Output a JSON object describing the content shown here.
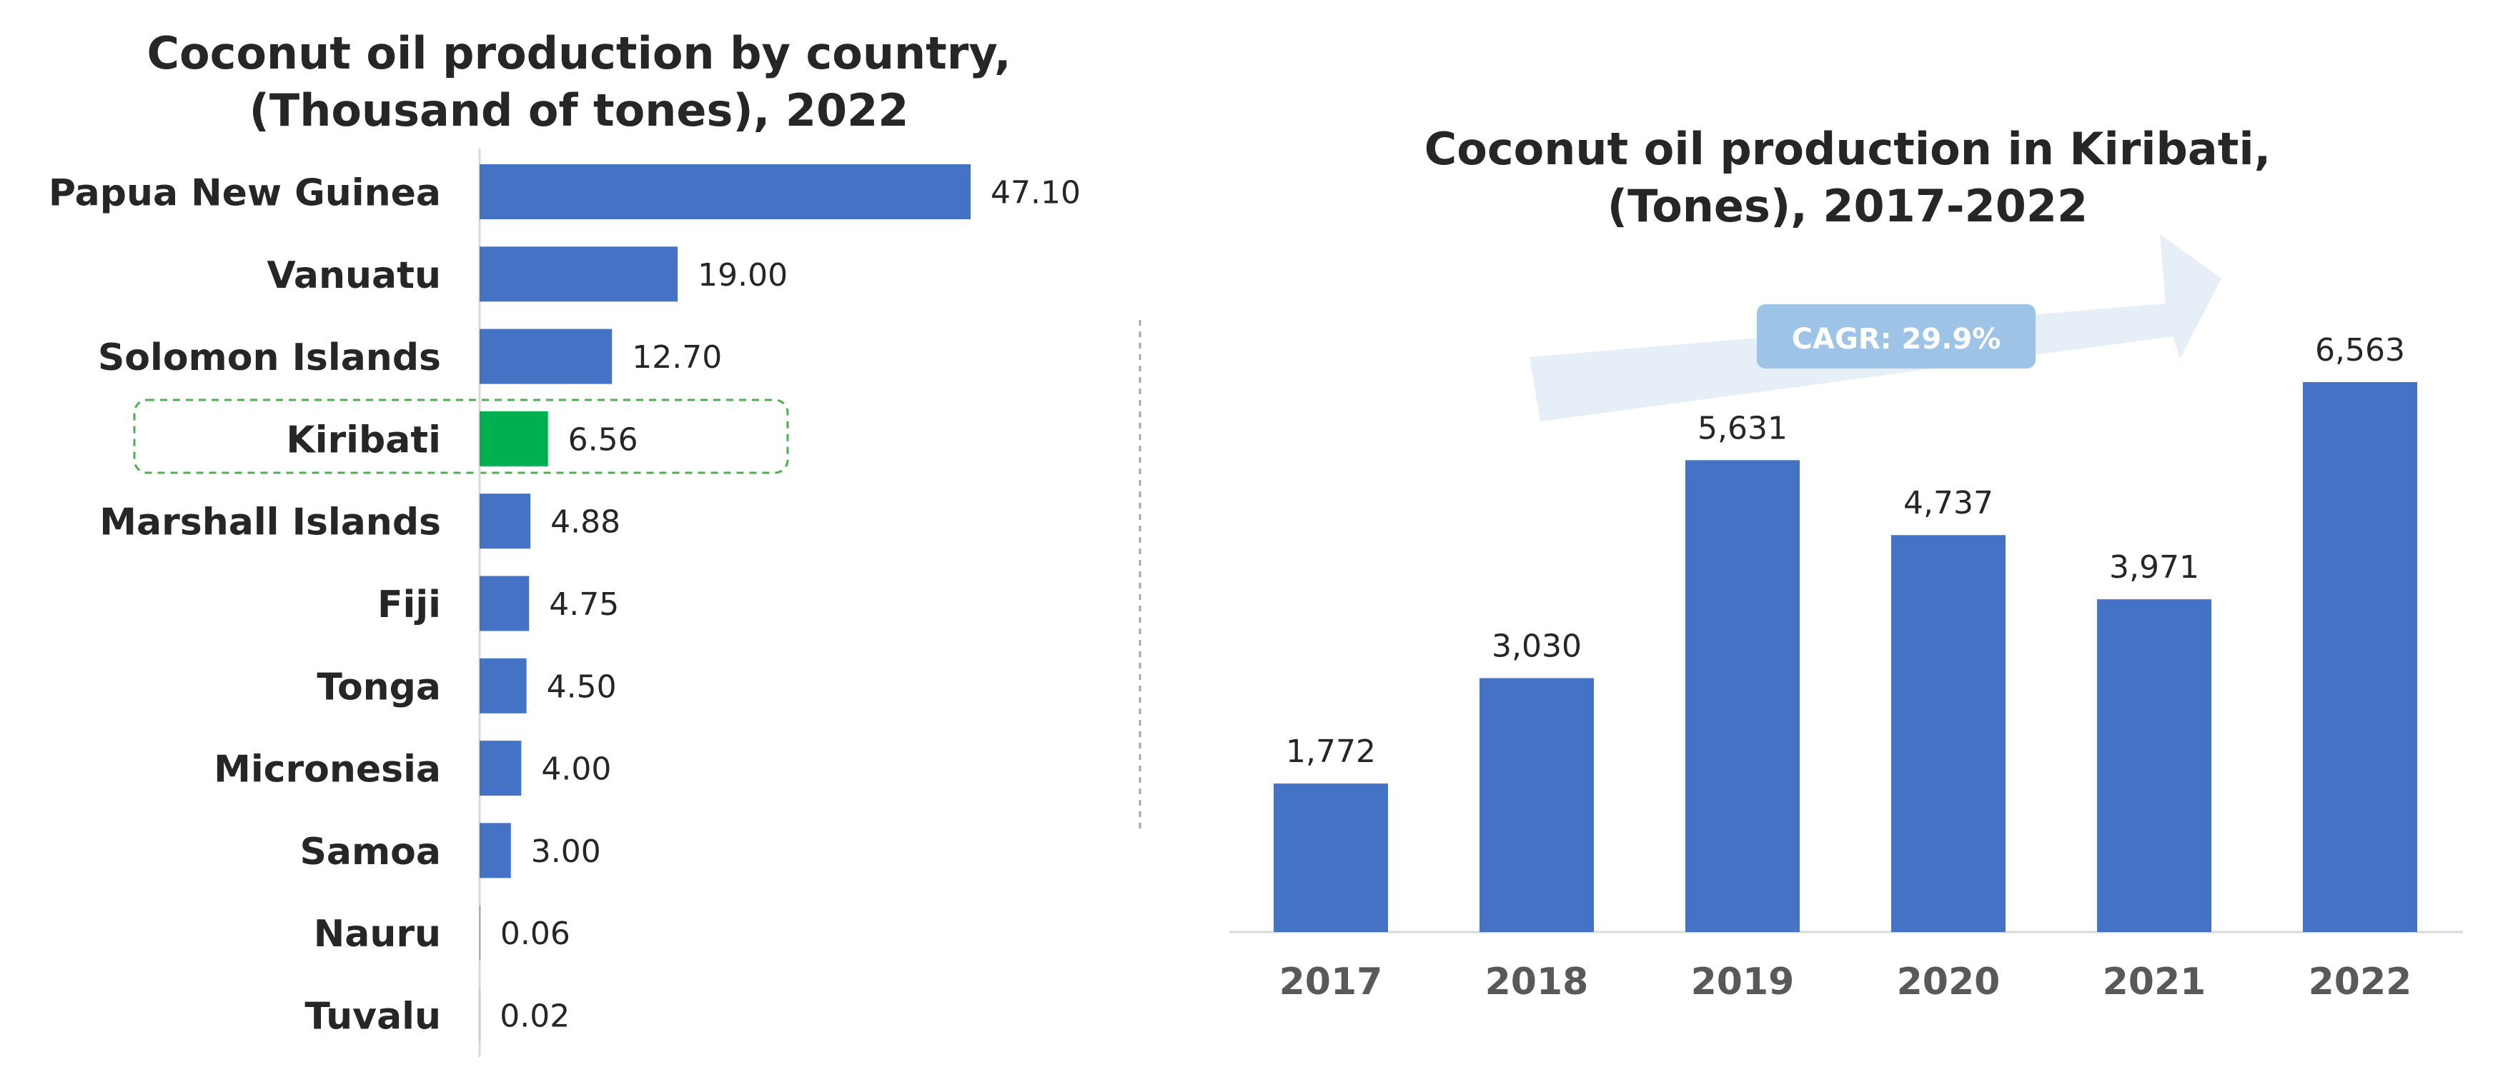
{
  "chart_data": [
    {
      "type": "bar",
      "orientation": "horizontal",
      "title_line1": "Coconut oil production by country,",
      "title_line2": "(Thousand of tones), 2022",
      "categories": [
        "Papua New Guinea",
        "Vanuatu",
        "Solomon Islands",
        "Kiribati",
        "Marshall Islands",
        "Fiji",
        "Tonga",
        "Micronesia",
        "Samoa",
        "Nauru",
        "Tuvalu"
      ],
      "values": [
        47.1,
        19.0,
        12.7,
        6.56,
        4.88,
        4.75,
        4.5,
        4.0,
        3.0,
        0.06,
        0.02
      ],
      "value_labels": [
        "47.10",
        "19.00",
        "12.70",
        "6.56",
        "4.88",
        "4.75",
        "4.50",
        "4.00",
        "3.00",
        "0.06",
        "0.02"
      ],
      "highlight": "Kiribati",
      "colors": {
        "bar": "#4472C4",
        "highlight": "#00B050",
        "highlight_box": "#4CAF50"
      },
      "grid": false
    },
    {
      "type": "bar",
      "orientation": "vertical",
      "title_line1": "Coconut oil production in Kiribati,",
      "title_line2": "(Tones), 2017-2022",
      "categories": [
        "2017",
        "2018",
        "2019",
        "2020",
        "2021",
        "2022"
      ],
      "values": [
        1772,
        3030,
        5631,
        4737,
        3971,
        6563
      ],
      "value_labels": [
        "1,772",
        "3,030",
        "5,631",
        "4,737",
        "3,971",
        "6,563"
      ],
      "annotation": "CAGR: 29.9%",
      "colors": {
        "bar": "#4472C4",
        "arrow": "#E6EEF8",
        "badge": "#9DC3E6"
      },
      "grid": false
    }
  ]
}
